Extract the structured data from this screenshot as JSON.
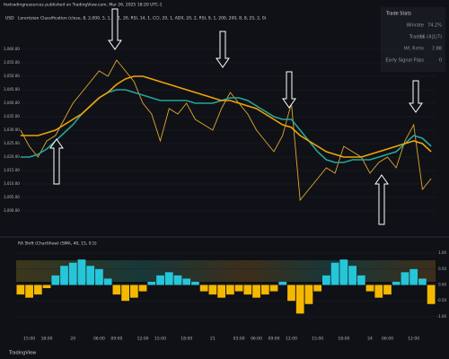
{
  "header": {
    "publisher": "foxtradingresources published on TradingView.com, Mar 26, 2025 18:20 UTC-1",
    "currency": "USD",
    "footer": "TradingView"
  },
  "trade_stats": {
    "title": "Trade Stats",
    "rows": [
      [
        "Winrate",
        "74.2%"
      ],
      [
        "Trades",
        "16 (4|1|7)"
      ],
      [
        "WL Ratio",
        "2.88"
      ],
      [
        "Early Signal Flips",
        "0"
      ]
    ]
  },
  "chart_data": [
    {
      "type": "line",
      "title": "Lorentzian Classification (close, 8, 2,000, 5, 1, -0.1, 20, RSI, 14, 1, CCI, 20, 1, ADX, 20, 2, RSI, 9, 1, 200, 200, 8, 8, 25, 2, 0)",
      "ylim": [
        2995,
        3065
      ],
      "yticks": [
        {
          "value": 3000,
          "label": "3,000.00"
        },
        {
          "value": 3005,
          "label": "3,005.00"
        },
        {
          "value": 3010,
          "label": "3,010.00"
        },
        {
          "value": 3015,
          "label": "3,015.00"
        },
        {
          "value": 3020,
          "label": "3,020.00"
        },
        {
          "value": 3025,
          "label": "3,025.00"
        },
        {
          "value": 3030,
          "label": "3,030.00"
        },
        {
          "value": 3035,
          "label": "3,035.00"
        },
        {
          "value": 3040,
          "label": "3,040.00"
        },
        {
          "value": 3045,
          "label": "3,045.00"
        },
        {
          "value": 3050,
          "label": "3,050.00"
        },
        {
          "value": 3055,
          "label": "3,055.00"
        },
        {
          "value": 3060,
          "label": "3,060.00"
        }
      ],
      "grid": true,
      "series": [
        {
          "color": "#e0a82e",
          "values": [
            3030,
            3024,
            3020,
            3026,
            3028,
            3034,
            3040,
            3044,
            3048,
            3052,
            3050,
            3056,
            3052,
            3048,
            3040,
            3036,
            3026,
            3038,
            3036,
            3040,
            3034,
            3032,
            3030,
            3038,
            3044,
            3040,
            3036,
            3030,
            3026,
            3022,
            3028,
            3040,
            3004,
            3008,
            3012,
            3016,
            3014,
            3024,
            3022,
            3020,
            3014,
            3018,
            3020,
            3016,
            3026,
            3032,
            3008,
            3012
          ]
        },
        {
          "color": "#26a69a",
          "values": [
            3020,
            3020,
            3021,
            3023,
            3026,
            3029,
            3032,
            3036,
            3039,
            3042,
            3044,
            3045,
            3045,
            3044,
            3043,
            3042,
            3041,
            3041,
            3041,
            3041,
            3040,
            3040,
            3040,
            3041,
            3042,
            3042,
            3041,
            3039,
            3037,
            3035,
            3034,
            3034,
            3030,
            3026,
            3022,
            3019,
            3018,
            3018,
            3019,
            3019,
            3019,
            3020,
            3021,
            3022,
            3025,
            3028,
            3027,
            3024
          ]
        },
        {
          "color": "#f0a30a",
          "values": [
            3028,
            3028,
            3028,
            3029,
            3030,
            3032,
            3034,
            3036,
            3039,
            3042,
            3044,
            3047,
            3049,
            3050,
            3050,
            3049,
            3048,
            3047,
            3046,
            3045,
            3044,
            3043,
            3042,
            3041,
            3041,
            3040,
            3039,
            3038,
            3036,
            3034,
            3032,
            3031,
            3028,
            3026,
            3024,
            3022,
            3021,
            3020,
            3020,
            3020,
            3021,
            3022,
            3023,
            3024,
            3025,
            3026,
            3025,
            3022
          ]
        }
      ]
    },
    {
      "type": "bar",
      "title": "RA Shift (ChartView) (SMA, 40, 15, 0.5)",
      "ylim": [
        -1.2,
        1.2
      ],
      "yticks": [
        {
          "value": 1,
          "label": "1.00"
        },
        {
          "value": 0.5,
          "label": "0.50"
        },
        {
          "value": 0,
          "label": "0.00"
        },
        {
          "value": -0.5,
          "label": "-0.50"
        },
        {
          "value": -1,
          "label": "-1.00"
        }
      ],
      "color": "#26c6da",
      "negative_color": "#f5b800",
      "categories": [
        null,
        "15:00",
        null,
        "18:00",
        null,
        null,
        "20",
        null,
        null,
        "06:00",
        null,
        "09:00",
        null,
        null,
        "12:00",
        null,
        "15:00",
        null,
        null,
        "18:00",
        null,
        null,
        "21",
        null,
        null,
        "03:00",
        null,
        "06:00",
        null,
        "09:00",
        null,
        "12:00",
        null,
        null,
        "15:00",
        null,
        null,
        "18:00",
        null,
        null,
        "24",
        null,
        "06:00",
        null,
        null,
        "12:00",
        null,
        null
      ],
      "values": [
        -0.3,
        -0.4,
        -0.3,
        -0.1,
        0.3,
        0.6,
        0.7,
        0.8,
        0.6,
        0.5,
        0.2,
        -0.3,
        -0.5,
        -0.4,
        -0.2,
        0.1,
        0.3,
        0.4,
        0.3,
        0.2,
        0.1,
        -0.2,
        -0.3,
        -0.4,
        -0.3,
        -0.2,
        -0.3,
        -0.4,
        -0.3,
        -0.2,
        0.1,
        -0.5,
        -0.9,
        -0.6,
        -0.2,
        0.3,
        0.7,
        0.8,
        0.6,
        0.3,
        -0.2,
        -0.4,
        -0.3,
        0.1,
        0.4,
        0.5,
        0.2,
        -0.6
      ]
    }
  ]
}
